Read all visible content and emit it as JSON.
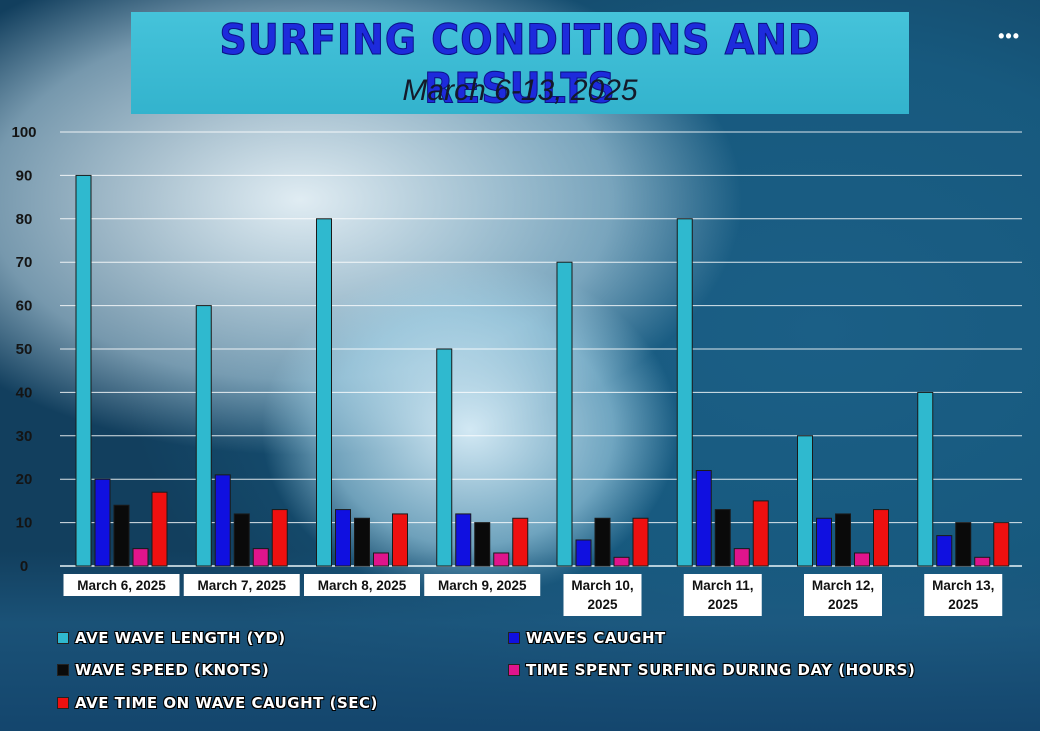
{
  "header": {
    "title": "Surfing Conditions and Results",
    "subtitle": "March 6-13, 2025",
    "more_icon": "more-horizontal-icon"
  },
  "chart_data": {
    "type": "bar",
    "title": "Surfing Conditions and Results",
    "subtitle": "March 6-13, 2025",
    "xlabel": "",
    "ylabel": "",
    "ylim": [
      0,
      100
    ],
    "yticks": [
      0,
      10,
      20,
      30,
      40,
      50,
      60,
      70,
      80,
      90,
      100
    ],
    "grid": true,
    "legend_position": "bottom",
    "categories": [
      [
        "March 6, 2025"
      ],
      [
        "March 7, 2025"
      ],
      [
        "March 8, 2025"
      ],
      [
        "March 9, 2025"
      ],
      [
        "March 10,",
        "2025"
      ],
      [
        "March 11,",
        "2025"
      ],
      [
        "March 12,",
        "2025"
      ],
      [
        "March 13,",
        "2025"
      ]
    ],
    "series": [
      {
        "name": "Ave Wave Length (yd)",
        "color": "#2fb9cf",
        "values": [
          90,
          60,
          80,
          50,
          70,
          80,
          30,
          40
        ]
      },
      {
        "name": "Waves Caught",
        "color": "#1010e0",
        "values": [
          20,
          21,
          13,
          12,
          6,
          22,
          11,
          7
        ]
      },
      {
        "name": "Wave Speed (knots)",
        "color": "#0a0a0a",
        "values": [
          14,
          12,
          11,
          10,
          11,
          13,
          12,
          10
        ]
      },
      {
        "name": "Time Spent Surfing During Day  (Hours)",
        "color": "#e0148c",
        "values": [
          4,
          4,
          3,
          3,
          2,
          4,
          3,
          2
        ]
      },
      {
        "name": "Ave Time on Wave Caught (sec)",
        "color": "#ee1010",
        "values": [
          17,
          13,
          12,
          11,
          11,
          15,
          13,
          10
        ]
      }
    ]
  }
}
